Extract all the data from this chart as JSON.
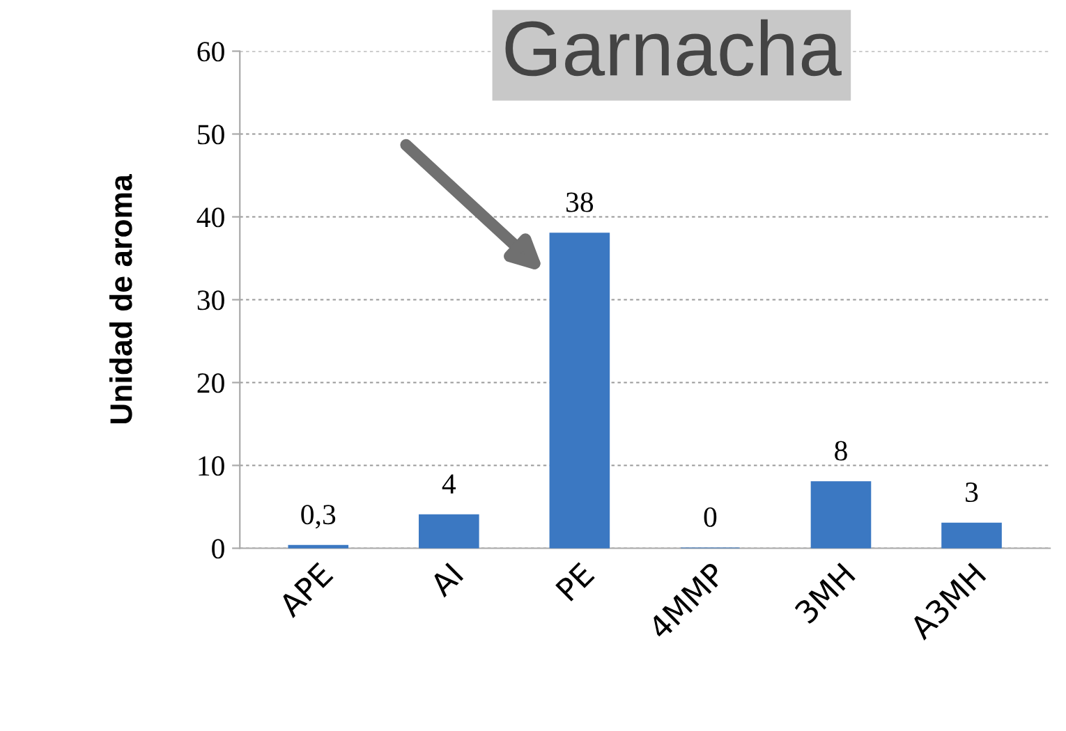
{
  "chart_data": {
    "type": "bar",
    "title": "Garnacha",
    "ylabel": "Unidad de aroma",
    "categories": [
      "APE",
      "AI",
      "PE",
      "4MMP",
      "3MH",
      "A3MH"
    ],
    "values": [
      0.3,
      4,
      38,
      0,
      8,
      3
    ],
    "value_labels": [
      "0,3",
      "4",
      "38",
      "0",
      "8",
      "3"
    ],
    "color": "#3b78c2",
    "ylim": [
      0,
      60
    ],
    "yticks": [
      0,
      10,
      20,
      30,
      40,
      50,
      60
    ],
    "grid": "y",
    "legend": false
  }
}
